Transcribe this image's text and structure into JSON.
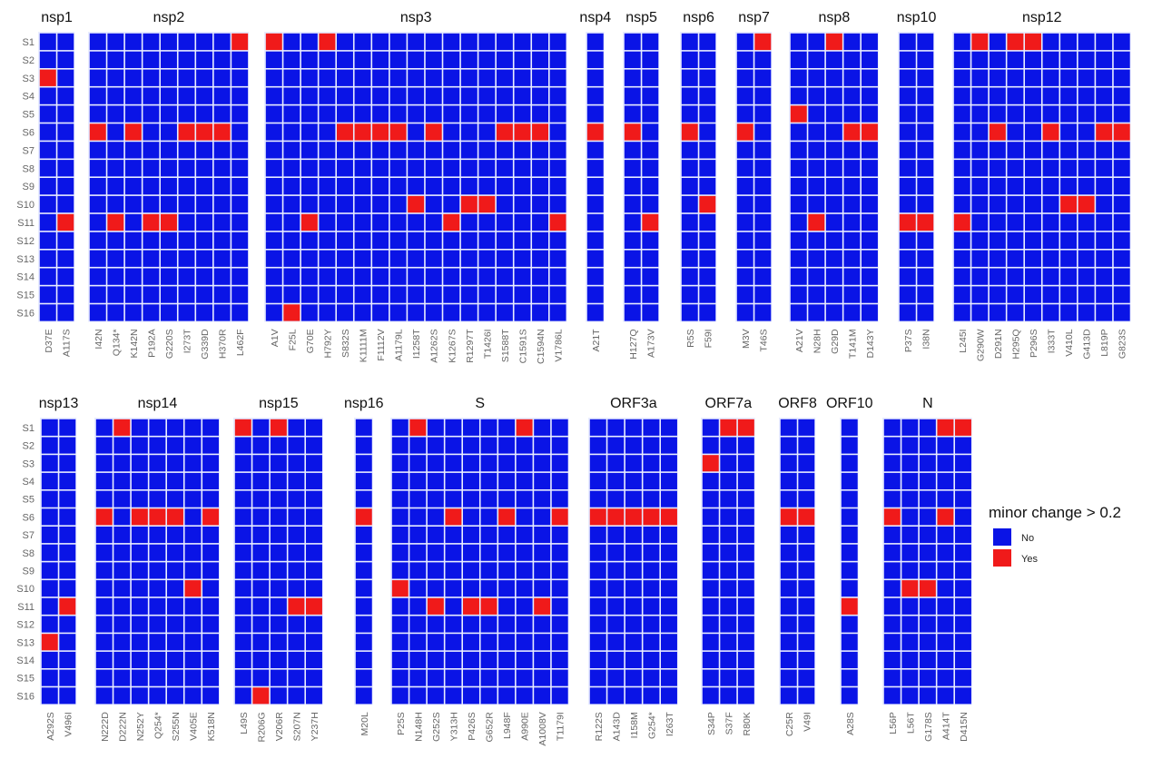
{
  "chart_data": {
    "type": "heatmap",
    "samples": [
      "S1",
      "S2",
      "S3",
      "S4",
      "S5",
      "S6",
      "S7",
      "S8",
      "S9",
      "S10",
      "S11",
      "S12",
      "S13",
      "S14",
      "S15",
      "S16"
    ],
    "legend": {
      "title": "minor change > 0.2",
      "placement": "right",
      "items": [
        {
          "label": "No",
          "color": "#0a14e6"
        },
        {
          "label": "Yes",
          "color": "#f01a1a"
        }
      ]
    },
    "colors": {
      "no": "#0a14e6",
      "yes": "#f01a1a",
      "grid": "#e8ecff"
    },
    "panels": [
      {
        "name": "nsp1",
        "row": 1,
        "mutations": [
          {
            "id": "D37E",
            "yes": [
              "S3"
            ]
          },
          {
            "id": "A117S",
            "yes": [
              "S11"
            ]
          }
        ]
      },
      {
        "name": "nsp2",
        "row": 1,
        "mutations": [
          {
            "id": "I42N",
            "yes": [
              "S6"
            ]
          },
          {
            "id": "Q134*",
            "yes": [
              "S11"
            ]
          },
          {
            "id": "K142N",
            "yes": [
              "S6"
            ]
          },
          {
            "id": "P192A",
            "yes": [
              "S11"
            ]
          },
          {
            "id": "G220S",
            "yes": [
              "S11"
            ]
          },
          {
            "id": "I273T",
            "yes": [
              "S6"
            ]
          },
          {
            "id": "G339D",
            "yes": [
              "S6"
            ]
          },
          {
            "id": "H370R",
            "yes": [
              "S6"
            ]
          },
          {
            "id": "L462F",
            "yes": [
              "S1"
            ]
          }
        ]
      },
      {
        "name": "nsp3",
        "row": 1,
        "mutations": [
          {
            "id": "A1V",
            "yes": [
              "S1"
            ]
          },
          {
            "id": "F25L",
            "yes": [
              "S16"
            ]
          },
          {
            "id": "G70E",
            "yes": [
              "S11"
            ]
          },
          {
            "id": "H792Y",
            "yes": [
              "S1"
            ]
          },
          {
            "id": "S832S",
            "yes": [
              "S6"
            ]
          },
          {
            "id": "K1111M",
            "yes": [
              "S6"
            ]
          },
          {
            "id": "F1112V",
            "yes": [
              "S6"
            ]
          },
          {
            "id": "A1179L",
            "yes": [
              "S6"
            ]
          },
          {
            "id": "I1258T",
            "yes": [
              "S10"
            ]
          },
          {
            "id": "A1262S",
            "yes": [
              "S6"
            ]
          },
          {
            "id": "K1267S",
            "yes": [
              "S11"
            ]
          },
          {
            "id": "R1297T",
            "yes": [
              "S10"
            ]
          },
          {
            "id": "T1426I",
            "yes": [
              "S10"
            ]
          },
          {
            "id": "S1588T",
            "yes": [
              "S6"
            ]
          },
          {
            "id": "C1591S",
            "yes": [
              "S6"
            ]
          },
          {
            "id": "C1594N",
            "yes": [
              "S6"
            ]
          },
          {
            "id": "V1786L",
            "yes": [
              "S11"
            ]
          }
        ]
      },
      {
        "name": "nsp4",
        "row": 1,
        "mutations": [
          {
            "id": "A21T",
            "yes": [
              "S6"
            ]
          }
        ]
      },
      {
        "name": "nsp5",
        "row": 1,
        "mutations": [
          {
            "id": "H127Q",
            "yes": [
              "S6"
            ]
          },
          {
            "id": "A173V",
            "yes": [
              "S11"
            ]
          }
        ]
      },
      {
        "name": "nsp6",
        "row": 1,
        "mutations": [
          {
            "id": "R5S",
            "yes": [
              "S6"
            ]
          },
          {
            "id": "F59I",
            "yes": [
              "S10"
            ]
          }
        ]
      },
      {
        "name": "nsp7",
        "row": 1,
        "mutations": [
          {
            "id": "M3V",
            "yes": [
              "S6"
            ]
          },
          {
            "id": "T46S",
            "yes": [
              "S1"
            ]
          }
        ]
      },
      {
        "name": "nsp8",
        "row": 1,
        "mutations": [
          {
            "id": "A21V",
            "yes": [
              "S5"
            ]
          },
          {
            "id": "N28H",
            "yes": [
              "S11"
            ]
          },
          {
            "id": "G29D",
            "yes": [
              "S1"
            ]
          },
          {
            "id": "T141M",
            "yes": [
              "S6"
            ]
          },
          {
            "id": "D143Y",
            "yes": [
              "S6"
            ]
          }
        ]
      },
      {
        "name": "nsp10",
        "row": 1,
        "mutations": [
          {
            "id": "P37S",
            "yes": [
              "S11"
            ]
          },
          {
            "id": "I38N",
            "yes": [
              "S11"
            ]
          }
        ]
      },
      {
        "name": "nsp12",
        "row": 1,
        "mutations": [
          {
            "id": "L245I",
            "yes": [
              "S11"
            ]
          },
          {
            "id": "G290W",
            "yes": [
              "S1"
            ]
          },
          {
            "id": "D291N",
            "yes": [
              "S6"
            ]
          },
          {
            "id": "H295Q",
            "yes": [
              "S1"
            ]
          },
          {
            "id": "P296S",
            "yes": [
              "S1"
            ]
          },
          {
            "id": "I333T",
            "yes": [
              "S6"
            ]
          },
          {
            "id": "V410L",
            "yes": [
              "S10"
            ]
          },
          {
            "id": "G413D",
            "yes": [
              "S10"
            ]
          },
          {
            "id": "L819P",
            "yes": [
              "S6"
            ]
          },
          {
            "id": "G823S",
            "yes": [
              "S6"
            ]
          }
        ]
      },
      {
        "name": "nsp13",
        "row": 2,
        "mutations": [
          {
            "id": "A292S",
            "yes": [
              "S13"
            ]
          },
          {
            "id": "V496I",
            "yes": [
              "S11"
            ]
          }
        ]
      },
      {
        "name": "nsp14",
        "row": 2,
        "mutations": [
          {
            "id": "N222D",
            "yes": [
              "S6"
            ]
          },
          {
            "id": "D222N",
            "yes": [
              "S1"
            ]
          },
          {
            "id": "N252Y",
            "yes": [
              "S6"
            ]
          },
          {
            "id": "Q254*",
            "yes": [
              "S6"
            ]
          },
          {
            "id": "S255N",
            "yes": [
              "S6"
            ]
          },
          {
            "id": "V405E",
            "yes": [
              "S10"
            ]
          },
          {
            "id": "K518N",
            "yes": [
              "S6"
            ]
          }
        ]
      },
      {
        "name": "nsp15",
        "row": 2,
        "mutations": [
          {
            "id": "L49S",
            "yes": [
              "S1"
            ]
          },
          {
            "id": "R206G",
            "yes": [
              "S16"
            ]
          },
          {
            "id": "V206R",
            "yes": [
              "S1"
            ]
          },
          {
            "id": "S207N",
            "yes": [
              "S11"
            ]
          },
          {
            "id": "Y237H",
            "yes": [
              "S11"
            ]
          }
        ]
      },
      {
        "name": "nsp16",
        "row": 2,
        "mutations": [
          {
            "id": "M20L",
            "yes": [
              "S6"
            ]
          }
        ]
      },
      {
        "name": "S",
        "row": 2,
        "mutations": [
          {
            "id": "P25S",
            "yes": [
              "S10"
            ]
          },
          {
            "id": "N148H",
            "yes": [
              "S1"
            ]
          },
          {
            "id": "G252S",
            "yes": [
              "S11"
            ]
          },
          {
            "id": "Y313H",
            "yes": [
              "S6"
            ]
          },
          {
            "id": "P426S",
            "yes": [
              "S11"
            ]
          },
          {
            "id": "G652R",
            "yes": [
              "S11"
            ]
          },
          {
            "id": "L948F",
            "yes": [
              "S6"
            ]
          },
          {
            "id": "A990E",
            "yes": [
              "S1"
            ]
          },
          {
            "id": "A1008V",
            "yes": [
              "S11"
            ]
          },
          {
            "id": "T1179I",
            "yes": [
              "S6"
            ]
          }
        ]
      },
      {
        "name": "ORF3a",
        "row": 2,
        "mutations": [
          {
            "id": "R122S",
            "yes": [
              "S6"
            ]
          },
          {
            "id": "A143D",
            "yes": [
              "S6"
            ]
          },
          {
            "id": "I158M",
            "yes": [
              "S6"
            ]
          },
          {
            "id": "G254*",
            "yes": [
              "S6"
            ]
          },
          {
            "id": "I263T",
            "yes": [
              "S6"
            ]
          }
        ]
      },
      {
        "name": "ORF7a",
        "row": 2,
        "mutations": [
          {
            "id": "S34P",
            "yes": [
              "S3"
            ]
          },
          {
            "id": "S37F",
            "yes": [
              "S1"
            ]
          },
          {
            "id": "R80K",
            "yes": [
              "S1"
            ]
          }
        ]
      },
      {
        "name": "ORF8",
        "row": 2,
        "mutations": [
          {
            "id": "C25R",
            "yes": [
              "S6"
            ]
          },
          {
            "id": "V49I",
            "yes": [
              "S6"
            ]
          }
        ]
      },
      {
        "name": "ORF10",
        "row": 2,
        "mutations": [
          {
            "id": "A28S",
            "yes": [
              "S11"
            ]
          }
        ]
      },
      {
        "name": "N",
        "row": 2,
        "mutations": [
          {
            "id": "L56P",
            "yes": [
              "S6"
            ]
          },
          {
            "id": "L56T",
            "yes": [
              "S10"
            ]
          },
          {
            "id": "G178S",
            "yes": [
              "S10"
            ]
          },
          {
            "id": "A414T",
            "yes": [
              "S1",
              "S6"
            ]
          },
          {
            "id": "D415N",
            "yes": [
              "S1"
            ]
          }
        ]
      }
    ]
  }
}
